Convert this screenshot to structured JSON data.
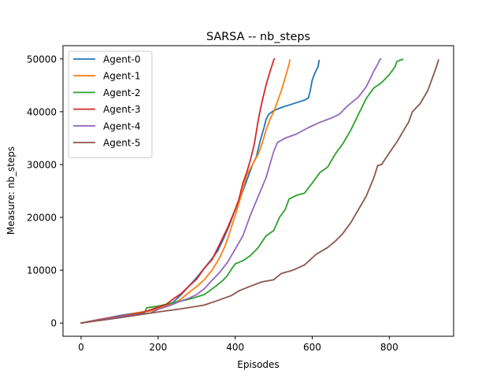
{
  "chart_data": {
    "type": "line",
    "title": "SARSA -- nb_steps",
    "xlabel": "Episodes",
    "ylabel": "Measure: nb_steps",
    "xlim": [
      -47,
      967
    ],
    "ylim": [
      -2500,
      52500
    ],
    "xticks": [
      0,
      200,
      400,
      600,
      800
    ],
    "yticks": [
      0,
      10000,
      20000,
      30000,
      40000,
      50000
    ],
    "grid": false,
    "legend_position": "top-left",
    "series": [
      {
        "name": "Agent-0",
        "color": "#1f77b4",
        "points": [
          [
            0,
            0
          ],
          [
            50,
            700
          ],
          [
            100,
            1400
          ],
          [
            150,
            2000
          ],
          [
            180,
            2300
          ],
          [
            200,
            2900
          ],
          [
            220,
            3300
          ],
          [
            240,
            4000
          ],
          [
            260,
            5400
          ],
          [
            280,
            7000
          ],
          [
            300,
            8600
          ],
          [
            320,
            10400
          ],
          [
            340,
            12200
          ],
          [
            355,
            13700
          ],
          [
            370,
            16000
          ],
          [
            385,
            18500
          ],
          [
            400,
            21500
          ],
          [
            415,
            24000
          ],
          [
            425,
            26000
          ],
          [
            435,
            28000
          ],
          [
            445,
            30000
          ],
          [
            455,
            31500
          ],
          [
            465,
            34500
          ],
          [
            475,
            37000
          ],
          [
            480,
            38500
          ],
          [
            487,
            39500
          ],
          [
            500,
            40200
          ],
          [
            520,
            40800
          ],
          [
            550,
            41500
          ],
          [
            580,
            42200
          ],
          [
            590,
            42600
          ],
          [
            595,
            44000
          ],
          [
            600,
            46000
          ],
          [
            608,
            47500
          ],
          [
            615,
            48500
          ],
          [
            618,
            49700
          ]
        ]
      },
      {
        "name": "Agent-1",
        "color": "#ff7f0e",
        "points": [
          [
            0,
            0
          ],
          [
            50,
            700
          ],
          [
            100,
            1300
          ],
          [
            150,
            2000
          ],
          [
            190,
            2400
          ],
          [
            210,
            3000
          ],
          [
            240,
            3600
          ],
          [
            260,
            4600
          ],
          [
            280,
            5800
          ],
          [
            300,
            6900
          ],
          [
            320,
            8200
          ],
          [
            340,
            10000
          ],
          [
            360,
            12400
          ],
          [
            375,
            14800
          ],
          [
            385,
            17000
          ],
          [
            400,
            20400
          ],
          [
            415,
            24000
          ],
          [
            430,
            28000
          ],
          [
            445,
            30000
          ],
          [
            460,
            32000
          ],
          [
            470,
            34000
          ],
          [
            480,
            36500
          ],
          [
            490,
            38500
          ],
          [
            500,
            40000
          ],
          [
            510,
            42000
          ],
          [
            520,
            44000
          ],
          [
            530,
            46500
          ],
          [
            540,
            49000
          ],
          [
            542,
            49800
          ]
        ]
      },
      {
        "name": "Agent-2",
        "color": "#2ca02c",
        "points": [
          [
            0,
            0
          ],
          [
            100,
            1300
          ],
          [
            165,
            2000
          ],
          [
            170,
            2900
          ],
          [
            200,
            3200
          ],
          [
            230,
            3700
          ],
          [
            280,
            4500
          ],
          [
            320,
            5400
          ],
          [
            350,
            7000
          ],
          [
            370,
            8200
          ],
          [
            380,
            9000
          ],
          [
            390,
            10200
          ],
          [
            400,
            11200
          ],
          [
            420,
            11800
          ],
          [
            440,
            12800
          ],
          [
            460,
            14300
          ],
          [
            480,
            16500
          ],
          [
            500,
            17500
          ],
          [
            515,
            20000
          ],
          [
            530,
            21500
          ],
          [
            540,
            23500
          ],
          [
            560,
            24200
          ],
          [
            580,
            24600
          ],
          [
            600,
            26500
          ],
          [
            620,
            28500
          ],
          [
            640,
            29500
          ],
          [
            660,
            32000
          ],
          [
            680,
            34000
          ],
          [
            700,
            36500
          ],
          [
            720,
            39500
          ],
          [
            740,
            42500
          ],
          [
            760,
            44500
          ],
          [
            780,
            45500
          ],
          [
            800,
            47000
          ],
          [
            815,
            48500
          ],
          [
            820,
            49500
          ],
          [
            830,
            49800
          ],
          [
            835,
            49900
          ]
        ]
      },
      {
        "name": "Agent-3",
        "color": "#d62728",
        "points": [
          [
            0,
            0
          ],
          [
            50,
            700
          ],
          [
            100,
            1300
          ],
          [
            150,
            1800
          ],
          [
            200,
            3000
          ],
          [
            220,
            3500
          ],
          [
            240,
            4600
          ],
          [
            260,
            5600
          ],
          [
            280,
            7000
          ],
          [
            300,
            8300
          ],
          [
            320,
            10400
          ],
          [
            340,
            12000
          ],
          [
            360,
            15000
          ],
          [
            380,
            18000
          ],
          [
            400,
            21500
          ],
          [
            410,
            23500
          ],
          [
            420,
            26500
          ],
          [
            430,
            28500
          ],
          [
            440,
            31000
          ],
          [
            450,
            34000
          ],
          [
            460,
            38500
          ],
          [
            470,
            42000
          ],
          [
            480,
            45000
          ],
          [
            490,
            47500
          ],
          [
            500,
            49800
          ],
          [
            502,
            50000
          ]
        ]
      },
      {
        "name": "Agent-4",
        "color": "#9467bd",
        "points": [
          [
            0,
            0
          ],
          [
            100,
            1200
          ],
          [
            180,
            1900
          ],
          [
            200,
            2600
          ],
          [
            230,
            3300
          ],
          [
            260,
            4200
          ],
          [
            280,
            4700
          ],
          [
            300,
            5400
          ],
          [
            320,
            6500
          ],
          [
            340,
            8100
          ],
          [
            360,
            9600
          ],
          [
            380,
            11500
          ],
          [
            400,
            14000
          ],
          [
            420,
            16500
          ],
          [
            440,
            20500
          ],
          [
            460,
            24000
          ],
          [
            480,
            27500
          ],
          [
            490,
            30000
          ],
          [
            500,
            32500
          ],
          [
            510,
            34200
          ],
          [
            530,
            35000
          ],
          [
            560,
            35800
          ],
          [
            590,
            37000
          ],
          [
            620,
            38000
          ],
          [
            650,
            38800
          ],
          [
            670,
            39500
          ],
          [
            690,
            41000
          ],
          [
            720,
            42800
          ],
          [
            740,
            44700
          ],
          [
            750,
            46200
          ],
          [
            760,
            47700
          ],
          [
            770,
            49000
          ],
          [
            775,
            49800
          ],
          [
            778,
            50000
          ]
        ]
      },
      {
        "name": "Agent-5",
        "color": "#8c564b",
        "points": [
          [
            0,
            0
          ],
          [
            100,
            1000
          ],
          [
            200,
            2100
          ],
          [
            260,
            2700
          ],
          [
            320,
            3400
          ],
          [
            360,
            4400
          ],
          [
            390,
            5200
          ],
          [
            410,
            6100
          ],
          [
            440,
            7000
          ],
          [
            470,
            7800
          ],
          [
            500,
            8200
          ],
          [
            520,
            9400
          ],
          [
            550,
            10000
          ],
          [
            580,
            11000
          ],
          [
            610,
            13000
          ],
          [
            640,
            14300
          ],
          [
            660,
            15500
          ],
          [
            680,
            17000
          ],
          [
            700,
            19000
          ],
          [
            720,
            21500
          ],
          [
            740,
            24000
          ],
          [
            760,
            27500
          ],
          [
            770,
            29800
          ],
          [
            780,
            30000
          ],
          [
            800,
            32200
          ],
          [
            820,
            34300
          ],
          [
            840,
            36800
          ],
          [
            850,
            38000
          ],
          [
            860,
            40000
          ],
          [
            880,
            41500
          ],
          [
            900,
            44000
          ],
          [
            910,
            46000
          ],
          [
            920,
            48000
          ],
          [
            928,
            49800
          ]
        ]
      }
    ]
  }
}
